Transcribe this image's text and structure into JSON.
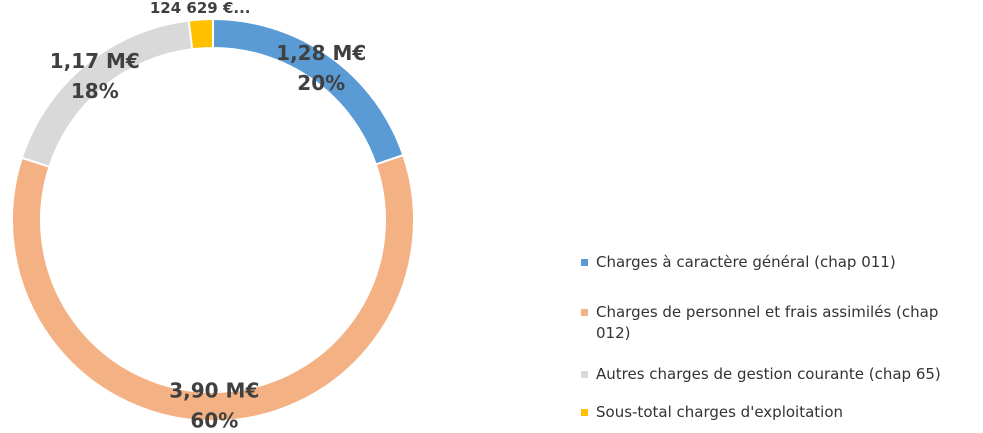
{
  "chart_data": {
    "type": "donut",
    "categories": [
      "Charges à caractère général  (chap 011)",
      "Charges de personnel et frais assimilés (chap 012)",
      "Autres charges de gestion courante (chap 65)",
      "Sous-total charges d'exploitation"
    ],
    "values": [
      1280000,
      3900000,
      1170000,
      124629
    ],
    "value_labels": [
      "1,28 M€",
      "3,90 M€",
      "1,17 M€",
      "124 629 €..."
    ],
    "percent_labels": [
      "20%",
      "60%",
      "18%",
      null
    ],
    "colors": [
      "#5b9bd5",
      "#f4b183",
      "#d9d9d9",
      "#ffc000"
    ],
    "legend": "right"
  }
}
